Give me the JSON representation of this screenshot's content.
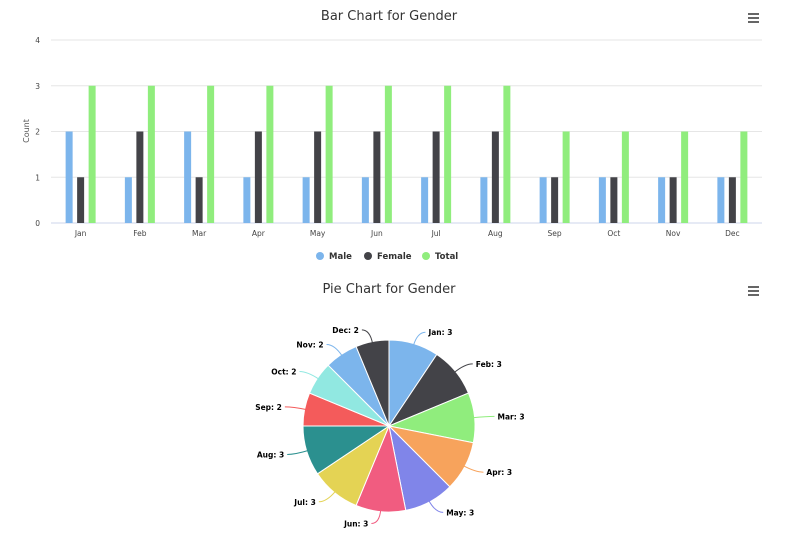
{
  "chart_data": [
    {
      "type": "bar",
      "title": "Bar Chart for Gender",
      "xlabel": "",
      "ylabel": "Count",
      "ylim": [
        0,
        4
      ],
      "yticks": [
        "0",
        "1",
        "2",
        "3",
        "4"
      ],
      "grid": true,
      "legend_position": "bottom",
      "categories": [
        "Jan",
        "Feb",
        "Mar",
        "Apr",
        "May",
        "Jun",
        "Jul",
        "Aug",
        "Sep",
        "Oct",
        "Nov",
        "Dec"
      ],
      "series": [
        {
          "name": "Male",
          "color": "#7cb5ec",
          "values": [
            2,
            1,
            2,
            1,
            1,
            1,
            1,
            1,
            1,
            1,
            1,
            1
          ]
        },
        {
          "name": "Female",
          "color": "#434348",
          "values": [
            1,
            2,
            1,
            2,
            2,
            2,
            2,
            2,
            1,
            1,
            1,
            1
          ]
        },
        {
          "name": "Total",
          "color": "#90ed7d",
          "values": [
            3,
            3,
            3,
            3,
            3,
            3,
            3,
            3,
            2,
            2,
            2,
            2
          ]
        }
      ]
    },
    {
      "type": "pie",
      "title": "Pie Chart for Gender",
      "slices": [
        {
          "label": "Jan: 3",
          "value": 3,
          "color": "#7cb5ec"
        },
        {
          "label": "Feb: 3",
          "value": 3,
          "color": "#434348"
        },
        {
          "label": "Mar: 3",
          "value": 3,
          "color": "#90ed7d"
        },
        {
          "label": "Apr: 3",
          "value": 3,
          "color": "#f7a35c"
        },
        {
          "label": "May: 3",
          "value": 3,
          "color": "#8085e9"
        },
        {
          "label": "Jun: 3",
          "value": 3,
          "color": "#f15c80"
        },
        {
          "label": "Jul: 3",
          "value": 3,
          "color": "#e4d354"
        },
        {
          "label": "Aug: 3",
          "value": 3,
          "color": "#2b908f"
        },
        {
          "label": "Sep: 2",
          "value": 2,
          "color": "#f45b5b"
        },
        {
          "label": "Oct: 2",
          "value": 2,
          "color": "#91e8e1"
        },
        {
          "label": "Nov: 2",
          "value": 2,
          "color": "#7cb5ec"
        },
        {
          "label": "Dec: 2",
          "value": 2,
          "color": "#434348"
        }
      ]
    }
  ],
  "menu_icon": "hamburger-menu-icon"
}
